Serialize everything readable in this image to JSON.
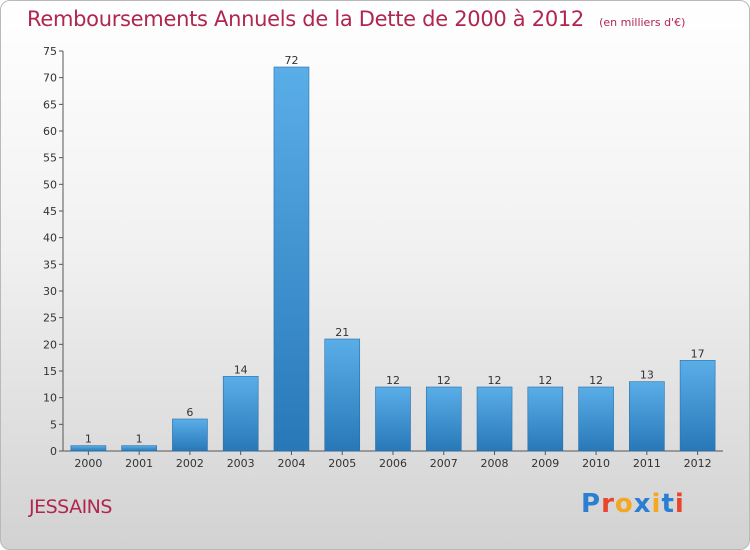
{
  "title": "Remboursements Annuels de la Dette de 2000 à 2012",
  "subtitle": "(en milliers d'€)",
  "commune": "JESSAINS",
  "logo": {
    "text": "Proxiti",
    "letter_colors": [
      "#2b7fd3",
      "#e8452c",
      "#f5a623",
      "#2b7fd3",
      "#f5a623",
      "#2b7fd3",
      "#e8452c"
    ]
  },
  "colors": {
    "title": "#b0264f",
    "bar_top": "#5aaee8",
    "bar_bottom": "#2878b8"
  },
  "chart_data": {
    "type": "bar",
    "title": "Remboursements Annuels de la Dette de 2000 à 2012",
    "xlabel": "",
    "ylabel": "",
    "categories": [
      "2000",
      "2001",
      "2002",
      "2003",
      "2004",
      "2005",
      "2006",
      "2007",
      "2008",
      "2009",
      "2010",
      "2011",
      "2012"
    ],
    "values": [
      1,
      1,
      6,
      14,
      72,
      21,
      12,
      12,
      12,
      12,
      12,
      13,
      17
    ],
    "ylim": [
      0,
      75
    ],
    "yticks": [
      0,
      5,
      10,
      15,
      20,
      25,
      30,
      35,
      40,
      45,
      50,
      55,
      60,
      65,
      70,
      75
    ],
    "grid": false,
    "legend": "none"
  }
}
